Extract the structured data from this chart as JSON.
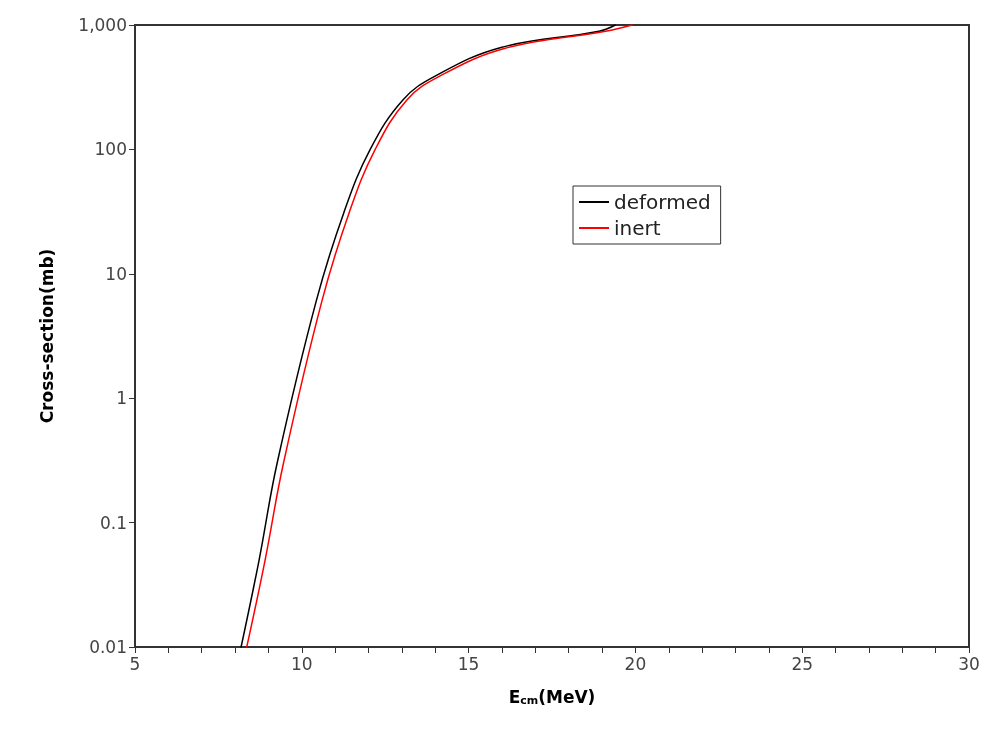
{
  "chart_data": {
    "type": "line",
    "xlabel": "E$_{cm}$(MeV)",
    "ylabel": "Cross-section(mb)",
    "series": [
      {
        "name": "deformed",
        "color": "#000000",
        "x": [
          8.18,
          8.72,
          9.26,
          10.43,
          11.26,
          12.05,
          13.03,
          14.01,
          15.97,
          18.91,
          19.4
        ],
        "values": [
          0.01,
          0.05,
          0.3,
          6,
          31,
          100,
          250,
          390,
          660,
          890,
          1000
        ]
      },
      {
        "name": "inert",
        "color": "#ff0000",
        "x": [
          8.35,
          8.9,
          9.45,
          10.6,
          11.42,
          12.2,
          13.15,
          14.15,
          16.1,
          19.1,
          19.9
        ],
        "values": [
          0.01,
          0.05,
          0.3,
          6,
          31,
          100,
          250,
          390,
          650,
          890,
          1000
        ]
      }
    ],
    "xlim": [
      5,
      30
    ],
    "xticks": [
      5,
      {
        "value": 6,
        "label": null
      },
      {
        "value": 7,
        "label": null
      },
      {
        "value": 8,
        "label": null
      },
      {
        "value": 9,
        "label": null
      },
      10,
      {
        "value": 11,
        "label": null
      },
      {
        "value": 12,
        "label": null
      },
      {
        "value": 13,
        "label": null
      },
      {
        "value": 14,
        "label": null
      },
      15,
      {
        "value": 16,
        "label": null
      },
      {
        "value": 17,
        "label": null
      },
      {
        "value": 18,
        "label": null
      },
      {
        "value": 19,
        "label": null
      },
      20,
      {
        "value": 21,
        "label": null
      },
      {
        "value": 22,
        "label": null
      },
      {
        "value": 23,
        "label": null
      },
      {
        "value": 24,
        "label": null
      },
      25,
      {
        "value": 26,
        "label": null
      },
      {
        "value": 27,
        "label": null
      },
      {
        "value": 28,
        "label": null
      },
      {
        "value": 29,
        "label": null
      },
      30
    ],
    "ylim": [
      0.01,
      1000
    ],
    "yticks": [
      0.01,
      0.1,
      1,
      10,
      100,
      {
        "value": 1000,
        "label": "1,000"
      }
    ],
    "log": "y",
    "grid": false,
    "legend": "top right",
    "marker": "none",
    "line_style": "solid"
  }
}
